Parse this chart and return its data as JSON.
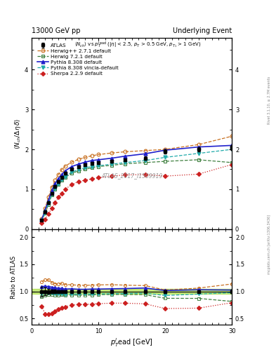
{
  "title_left": "13000 GeV pp",
  "title_right": "Underlying Event",
  "watermark": "ATLAS_2017_I1509919",
  "rivet_text": "Rivet 3.1.10, ≥ 2.7M events",
  "arxiv_text": "mcplots.cern.ch [arXiv:1306.3436]",
  "ylim_main": [
    0,
    4.8
  ],
  "ylim_ratio": [
    0.38,
    2.15
  ],
  "xlim": [
    0,
    30
  ],
  "atlas_x": [
    1.5,
    2.0,
    2.5,
    3.0,
    3.5,
    4.0,
    4.5,
    5.0,
    6.0,
    7.0,
    8.0,
    9.0,
    10.0,
    12.0,
    14.0,
    17.0,
    20.0,
    25.0,
    30.0
  ],
  "atlas_y": [
    0.22,
    0.43,
    0.66,
    0.9,
    1.07,
    1.2,
    1.3,
    1.4,
    1.5,
    1.57,
    1.62,
    1.65,
    1.67,
    1.7,
    1.74,
    1.78,
    1.95,
    2.0,
    2.05
  ],
  "atlas_yerr": [
    0.02,
    0.03,
    0.03,
    0.03,
    0.03,
    0.03,
    0.03,
    0.03,
    0.03,
    0.03,
    0.03,
    0.03,
    0.03,
    0.03,
    0.03,
    0.04,
    0.05,
    0.05,
    0.06
  ],
  "herwig271_x": [
    1.5,
    2.0,
    2.5,
    3.0,
    3.5,
    4.0,
    4.5,
    5.0,
    6.0,
    7.0,
    8.0,
    9.0,
    10.0,
    12.0,
    14.0,
    17.0,
    20.0,
    25.0,
    30.0
  ],
  "herwig271_y": [
    0.26,
    0.52,
    0.8,
    1.05,
    1.22,
    1.37,
    1.49,
    1.58,
    1.68,
    1.75,
    1.8,
    1.84,
    1.87,
    1.91,
    1.94,
    1.97,
    2.0,
    2.12,
    2.33
  ],
  "herwig271_color": "#c87020",
  "herwig721_x": [
    1.5,
    2.0,
    2.5,
    3.0,
    3.5,
    4.0,
    4.5,
    5.0,
    6.0,
    7.0,
    8.0,
    9.0,
    10.0,
    12.0,
    14.0,
    17.0,
    20.0,
    25.0,
    30.0
  ],
  "herwig721_y": [
    0.2,
    0.4,
    0.62,
    0.85,
    1.0,
    1.12,
    1.22,
    1.3,
    1.4,
    1.46,
    1.5,
    1.54,
    1.57,
    1.6,
    1.64,
    1.67,
    1.7,
    1.74,
    1.67
  ],
  "herwig721_color": "#408040",
  "pythia8308_x": [
    1.5,
    2.0,
    2.5,
    3.0,
    3.5,
    4.0,
    4.5,
    5.0,
    6.0,
    7.0,
    8.0,
    9.0,
    10.0,
    12.0,
    14.0,
    17.0,
    20.0,
    25.0,
    30.0
  ],
  "pythia8308_y": [
    0.24,
    0.47,
    0.72,
    0.97,
    1.14,
    1.27,
    1.37,
    1.46,
    1.57,
    1.63,
    1.68,
    1.72,
    1.74,
    1.78,
    1.83,
    1.89,
    1.98,
    2.06,
    2.1
  ],
  "pythia8308_color": "#2020cc",
  "pythia8308v_x": [
    1.5,
    2.0,
    2.5,
    3.0,
    3.5,
    4.0,
    4.5,
    5.0,
    6.0,
    7.0,
    8.0,
    9.0,
    10.0,
    12.0,
    14.0,
    17.0,
    20.0,
    25.0,
    30.0
  ],
  "pythia8308v_y": [
    0.21,
    0.42,
    0.64,
    0.87,
    1.02,
    1.14,
    1.24,
    1.32,
    1.43,
    1.49,
    1.54,
    1.57,
    1.59,
    1.63,
    1.67,
    1.72,
    1.8,
    1.9,
    2.0
  ],
  "pythia8308v_color": "#20aaaa",
  "sherpa229_x": [
    1.5,
    2.0,
    2.5,
    3.0,
    3.5,
    4.0,
    4.5,
    5.0,
    6.0,
    7.0,
    8.0,
    9.0,
    10.0,
    12.0,
    14.0,
    17.0,
    20.0,
    25.0,
    30.0
  ],
  "sherpa229_y": [
    0.16,
    0.25,
    0.38,
    0.53,
    0.67,
    0.8,
    0.9,
    1.0,
    1.12,
    1.19,
    1.23,
    1.26,
    1.29,
    1.33,
    1.36,
    1.37,
    1.33,
    1.38,
    1.62
  ],
  "sherpa229_color": "#cc2020",
  "atlas_band_color": "#aadd44"
}
